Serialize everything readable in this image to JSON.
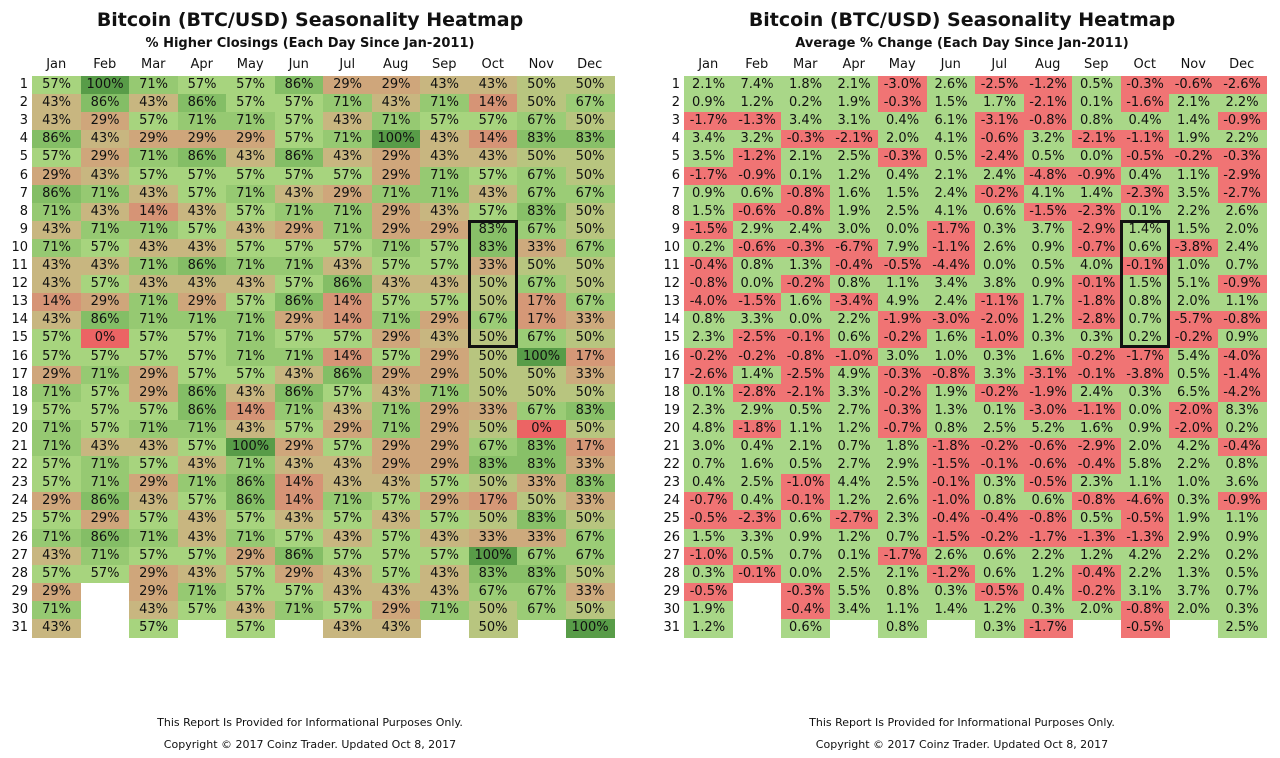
{
  "chart_data": [
    {
      "type": "heatmap",
      "title": "Bitcoin (BTC/USD) Seasonality Heatmap",
      "subtitle": "% Higher Closings (Each Day Since Jan-2011)",
      "x": [
        "Jan",
        "Feb",
        "Mar",
        "Apr",
        "May",
        "Jun",
        "Jul",
        "Aug",
        "Sep",
        "Oct",
        "Nov",
        "Dec"
      ],
      "y": [
        "1",
        "2",
        "3",
        "4",
        "5",
        "6",
        "7",
        "8",
        "9",
        "10",
        "11",
        "12",
        "13",
        "14",
        "15",
        "16",
        "17",
        "18",
        "19",
        "20",
        "21",
        "22",
        "23",
        "24",
        "25",
        "26",
        "27",
        "28",
        "29",
        "30",
        "31"
      ],
      "values": [
        [
          "57%",
          "100%",
          "71%",
          "57%",
          "57%",
          "86%",
          "29%",
          "29%",
          "43%",
          "43%",
          "50%",
          "50%"
        ],
        [
          "43%",
          "86%",
          "43%",
          "86%",
          "57%",
          "57%",
          "71%",
          "43%",
          "71%",
          "14%",
          "50%",
          "67%"
        ],
        [
          "43%",
          "29%",
          "57%",
          "71%",
          "71%",
          "57%",
          "43%",
          "71%",
          "57%",
          "57%",
          "67%",
          "50%"
        ],
        [
          "86%",
          "43%",
          "29%",
          "29%",
          "29%",
          "57%",
          "71%",
          "100%",
          "43%",
          "14%",
          "83%",
          "83%"
        ],
        [
          "57%",
          "29%",
          "71%",
          "86%",
          "43%",
          "86%",
          "43%",
          "29%",
          "43%",
          "43%",
          "50%",
          "50%"
        ],
        [
          "29%",
          "43%",
          "57%",
          "57%",
          "57%",
          "57%",
          "57%",
          "29%",
          "71%",
          "57%",
          "67%",
          "50%"
        ],
        [
          "86%",
          "71%",
          "43%",
          "57%",
          "71%",
          "43%",
          "29%",
          "71%",
          "71%",
          "43%",
          "67%",
          "67%"
        ],
        [
          "71%",
          "43%",
          "14%",
          "43%",
          "57%",
          "71%",
          "71%",
          "29%",
          "43%",
          "57%",
          "83%",
          "50%"
        ],
        [
          "43%",
          "71%",
          "71%",
          "57%",
          "43%",
          "29%",
          "71%",
          "29%",
          "29%",
          "83%",
          "67%",
          "50%"
        ],
        [
          "71%",
          "57%",
          "43%",
          "43%",
          "57%",
          "57%",
          "57%",
          "71%",
          "57%",
          "83%",
          "33%",
          "67%"
        ],
        [
          "43%",
          "43%",
          "71%",
          "86%",
          "71%",
          "71%",
          "43%",
          "57%",
          "57%",
          "33%",
          "50%",
          "50%"
        ],
        [
          "43%",
          "57%",
          "43%",
          "43%",
          "43%",
          "57%",
          "86%",
          "43%",
          "43%",
          "50%",
          "67%",
          "50%"
        ],
        [
          "14%",
          "29%",
          "71%",
          "29%",
          "57%",
          "86%",
          "14%",
          "57%",
          "57%",
          "50%",
          "17%",
          "67%"
        ],
        [
          "43%",
          "86%",
          "71%",
          "71%",
          "71%",
          "29%",
          "14%",
          "71%",
          "29%",
          "67%",
          "17%",
          "33%"
        ],
        [
          "57%",
          "0%",
          "57%",
          "57%",
          "71%",
          "57%",
          "57%",
          "29%",
          "43%",
          "50%",
          "67%",
          "50%"
        ],
        [
          "57%",
          "57%",
          "57%",
          "57%",
          "71%",
          "71%",
          "14%",
          "57%",
          "29%",
          "50%",
          "100%",
          "17%"
        ],
        [
          "29%",
          "71%",
          "29%",
          "57%",
          "57%",
          "43%",
          "86%",
          "29%",
          "29%",
          "50%",
          "50%",
          "33%"
        ],
        [
          "71%",
          "57%",
          "29%",
          "86%",
          "43%",
          "86%",
          "57%",
          "43%",
          "71%",
          "50%",
          "50%",
          "50%"
        ],
        [
          "57%",
          "57%",
          "57%",
          "86%",
          "14%",
          "71%",
          "43%",
          "71%",
          "29%",
          "33%",
          "67%",
          "83%"
        ],
        [
          "71%",
          "57%",
          "71%",
          "71%",
          "43%",
          "57%",
          "29%",
          "71%",
          "29%",
          "50%",
          "0%",
          "50%"
        ],
        [
          "71%",
          "43%",
          "43%",
          "57%",
          "100%",
          "29%",
          "57%",
          "29%",
          "29%",
          "67%",
          "83%",
          "17%"
        ],
        [
          "57%",
          "71%",
          "57%",
          "43%",
          "71%",
          "43%",
          "43%",
          "29%",
          "29%",
          "83%",
          "83%",
          "33%"
        ],
        [
          "57%",
          "71%",
          "29%",
          "71%",
          "86%",
          "14%",
          "43%",
          "43%",
          "57%",
          "50%",
          "33%",
          "83%"
        ],
        [
          "29%",
          "86%",
          "43%",
          "57%",
          "86%",
          "14%",
          "71%",
          "57%",
          "29%",
          "17%",
          "50%",
          "33%"
        ],
        [
          "57%",
          "29%",
          "57%",
          "43%",
          "57%",
          "43%",
          "57%",
          "43%",
          "57%",
          "50%",
          "83%",
          "50%"
        ],
        [
          "71%",
          "86%",
          "71%",
          "43%",
          "71%",
          "57%",
          "43%",
          "57%",
          "43%",
          "33%",
          "33%",
          "67%"
        ],
        [
          "43%",
          "71%",
          "57%",
          "57%",
          "29%",
          "86%",
          "57%",
          "57%",
          "57%",
          "100%",
          "67%",
          "67%"
        ],
        [
          "57%",
          "57%",
          "29%",
          "43%",
          "57%",
          "29%",
          "43%",
          "57%",
          "43%",
          "83%",
          "83%",
          "50%"
        ],
        [
          "29%",
          "",
          "29%",
          "71%",
          "57%",
          "57%",
          "43%",
          "43%",
          "43%",
          "67%",
          "67%",
          "33%"
        ],
        [
          "71%",
          "",
          "43%",
          "57%",
          "43%",
          "71%",
          "57%",
          "29%",
          "71%",
          "50%",
          "67%",
          "50%"
        ],
        [
          "43%",
          "",
          "57%",
          "",
          "57%",
          "",
          "43%",
          "43%",
          "",
          "50%",
          "",
          "100%"
        ]
      ],
      "highlight": {
        "column": "Oct",
        "rows": [
          "9",
          "15"
        ]
      },
      "footer_note": "This Report Is Provided for Informational Purposes Only.",
      "footer_copyright": "Copyright © 2017 Coinz Trader. Updated Oct 8, 2017"
    },
    {
      "type": "heatmap",
      "title": "Bitcoin (BTC/USD) Seasonality Heatmap",
      "subtitle": "Average % Change (Each Day Since Jan-2011)",
      "x": [
        "Jan",
        "Feb",
        "Mar",
        "Apr",
        "May",
        "Jun",
        "Jul",
        "Aug",
        "Sep",
        "Oct",
        "Nov",
        "Dec"
      ],
      "y": [
        "1",
        "2",
        "3",
        "4",
        "5",
        "6",
        "7",
        "8",
        "9",
        "10",
        "11",
        "12",
        "13",
        "14",
        "15",
        "16",
        "17",
        "18",
        "19",
        "20",
        "21",
        "22",
        "23",
        "24",
        "25",
        "26",
        "27",
        "28",
        "29",
        "30",
        "31"
      ],
      "values": [
        [
          "2.1%",
          "7.4%",
          "1.8%",
          "2.1%",
          "-3.0%",
          "2.6%",
          "-2.5%",
          "-1.2%",
          "0.5%",
          "-0.3%",
          "-0.6%",
          "-2.6%"
        ],
        [
          "0.9%",
          "1.2%",
          "0.2%",
          "1.9%",
          "-0.3%",
          "1.5%",
          "1.7%",
          "-2.1%",
          "0.1%",
          "-1.6%",
          "2.1%",
          "2.2%"
        ],
        [
          "-1.7%",
          "-1.3%",
          "3.4%",
          "3.1%",
          "0.4%",
          "6.1%",
          "-3.1%",
          "-0.8%",
          "0.8%",
          "0.4%",
          "1.4%",
          "-0.9%"
        ],
        [
          "3.4%",
          "3.2%",
          "-0.3%",
          "-2.1%",
          "2.0%",
          "4.1%",
          "-0.6%",
          "3.2%",
          "-2.1%",
          "-1.1%",
          "1.9%",
          "2.2%"
        ],
        [
          "3.5%",
          "-1.2%",
          "2.1%",
          "2.5%",
          "-0.3%",
          "0.5%",
          "-2.4%",
          "0.5%",
          "0.0%",
          "-0.5%",
          "-0.2%",
          "-0.3%"
        ],
        [
          "-1.7%",
          "-0.9%",
          "0.1%",
          "1.2%",
          "0.4%",
          "2.1%",
          "2.4%",
          "-4.8%",
          "-0.9%",
          "0.4%",
          "1.1%",
          "-2.9%"
        ],
        [
          "0.9%",
          "0.6%",
          "-0.8%",
          "1.6%",
          "1.5%",
          "2.4%",
          "-0.2%",
          "4.1%",
          "1.4%",
          "-2.3%",
          "3.5%",
          "-2.7%"
        ],
        [
          "1.5%",
          "-0.6%",
          "-0.8%",
          "1.9%",
          "2.5%",
          "4.1%",
          "0.6%",
          "-1.5%",
          "-2.3%",
          "0.1%",
          "2.2%",
          "2.6%"
        ],
        [
          "-1.5%",
          "2.9%",
          "2.4%",
          "3.0%",
          "0.0%",
          "-1.7%",
          "0.3%",
          "3.7%",
          "-2.9%",
          "1.4%",
          "1.5%",
          "2.0%"
        ],
        [
          "0.2%",
          "-0.6%",
          "-0.3%",
          "-6.7%",
          "7.9%",
          "-1.1%",
          "2.6%",
          "0.9%",
          "-0.7%",
          "0.6%",
          "-3.8%",
          "2.4%"
        ],
        [
          "-0.4%",
          "0.8%",
          "1.3%",
          "-0.4%",
          "-0.5%",
          "-4.4%",
          "0.0%",
          "0.5%",
          "4.0%",
          "-0.1%",
          "1.0%",
          "0.7%"
        ],
        [
          "-0.8%",
          "0.0%",
          "-0.2%",
          "0.8%",
          "1.1%",
          "3.4%",
          "3.8%",
          "0.9%",
          "-0.1%",
          "1.5%",
          "5.1%",
          "-0.9%"
        ],
        [
          "-4.0%",
          "-1.5%",
          "1.6%",
          "-3.4%",
          "4.9%",
          "2.4%",
          "-1.1%",
          "1.7%",
          "-1.8%",
          "0.8%",
          "2.0%",
          "1.1%"
        ],
        [
          "0.8%",
          "3.3%",
          "0.0%",
          "2.2%",
          "-1.9%",
          "-3.0%",
          "-2.0%",
          "1.2%",
          "-2.8%",
          "0.7%",
          "-5.7%",
          "-0.8%"
        ],
        [
          "2.3%",
          "-2.5%",
          "-0.1%",
          "0.6%",
          "-0.2%",
          "1.6%",
          "-1.0%",
          "0.3%",
          "0.3%",
          "0.2%",
          "-0.2%",
          "0.9%"
        ],
        [
          "-0.2%",
          "-0.2%",
          "-0.8%",
          "-1.0%",
          "3.0%",
          "1.0%",
          "0.3%",
          "1.6%",
          "-0.2%",
          "-1.7%",
          "5.4%",
          "-4.0%"
        ],
        [
          "-2.6%",
          "1.4%",
          "-2.5%",
          "4.9%",
          "-0.3%",
          "-0.8%",
          "3.3%",
          "-3.1%",
          "-0.1%",
          "-3.8%",
          "0.5%",
          "-1.4%"
        ],
        [
          "0.1%",
          "-2.8%",
          "-2.1%",
          "3.3%",
          "-0.2%",
          "1.9%",
          "-0.2%",
          "-1.9%",
          "2.4%",
          "0.3%",
          "6.5%",
          "-4.2%"
        ],
        [
          "2.3%",
          "2.9%",
          "0.5%",
          "2.7%",
          "-0.3%",
          "1.3%",
          "0.1%",
          "-3.0%",
          "-1.1%",
          "0.0%",
          "-2.0%",
          "8.3%"
        ],
        [
          "4.8%",
          "-1.8%",
          "1.1%",
          "1.2%",
          "-0.7%",
          "0.8%",
          "2.5%",
          "5.2%",
          "1.6%",
          "0.9%",
          "-2.0%",
          "0.2%"
        ],
        [
          "3.0%",
          "0.4%",
          "2.1%",
          "0.7%",
          "1.8%",
          "-1.8%",
          "-0.2%",
          "-0.6%",
          "-2.9%",
          "2.0%",
          "4.2%",
          "-0.4%"
        ],
        [
          "0.7%",
          "1.6%",
          "0.5%",
          "2.7%",
          "2.9%",
          "-1.5%",
          "-0.1%",
          "-0.6%",
          "-0.4%",
          "5.8%",
          "2.2%",
          "0.8%"
        ],
        [
          "0.4%",
          "2.5%",
          "-1.0%",
          "4.4%",
          "2.5%",
          "-0.1%",
          "0.3%",
          "-0.5%",
          "2.3%",
          "1.1%",
          "1.0%",
          "3.6%"
        ],
        [
          "-0.7%",
          "0.4%",
          "-0.1%",
          "1.2%",
          "2.6%",
          "-1.0%",
          "0.8%",
          "0.6%",
          "-0.8%",
          "-4.6%",
          "0.3%",
          "-0.9%"
        ],
        [
          "-0.5%",
          "-2.3%",
          "0.6%",
          "-2.7%",
          "2.3%",
          "-0.4%",
          "-0.4%",
          "-0.8%",
          "0.5%",
          "-0.5%",
          "1.9%",
          "1.1%"
        ],
        [
          "1.5%",
          "3.3%",
          "0.9%",
          "1.2%",
          "0.7%",
          "-1.5%",
          "-0.2%",
          "-1.7%",
          "-1.3%",
          "-1.3%",
          "2.9%",
          "0.9%"
        ],
        [
          "-1.0%",
          "0.5%",
          "0.7%",
          "0.1%",
          "-1.7%",
          "2.6%",
          "0.6%",
          "2.2%",
          "1.2%",
          "4.2%",
          "2.2%",
          "0.2%"
        ],
        [
          "0.3%",
          "-0.1%",
          "0.0%",
          "2.5%",
          "2.1%",
          "-1.2%",
          "0.6%",
          "1.2%",
          "-0.4%",
          "2.2%",
          "1.3%",
          "0.5%"
        ],
        [
          "-0.5%",
          "",
          "-0.3%",
          "5.5%",
          "0.8%",
          "0.3%",
          "-0.5%",
          "0.4%",
          "-0.2%",
          "3.1%",
          "3.7%",
          "0.7%"
        ],
        [
          "1.9%",
          "",
          "-0.4%",
          "3.4%",
          "1.1%",
          "1.4%",
          "1.2%",
          "0.3%",
          "2.0%",
          "-0.8%",
          "2.0%",
          "0.3%"
        ],
        [
          "1.2%",
          "",
          "0.6%",
          "",
          "0.8%",
          "",
          "0.3%",
          "-1.7%",
          "",
          "-0.5%",
          "",
          "2.5%"
        ]
      ],
      "highlight": {
        "column": "Oct",
        "rows": [
          "9",
          "15"
        ]
      },
      "footer_note": "This Report Is Provided for Informational Purposes Only.",
      "footer_copyright": "Copyright © 2017 Coinz Trader. Updated Oct 8, 2017"
    }
  ]
}
